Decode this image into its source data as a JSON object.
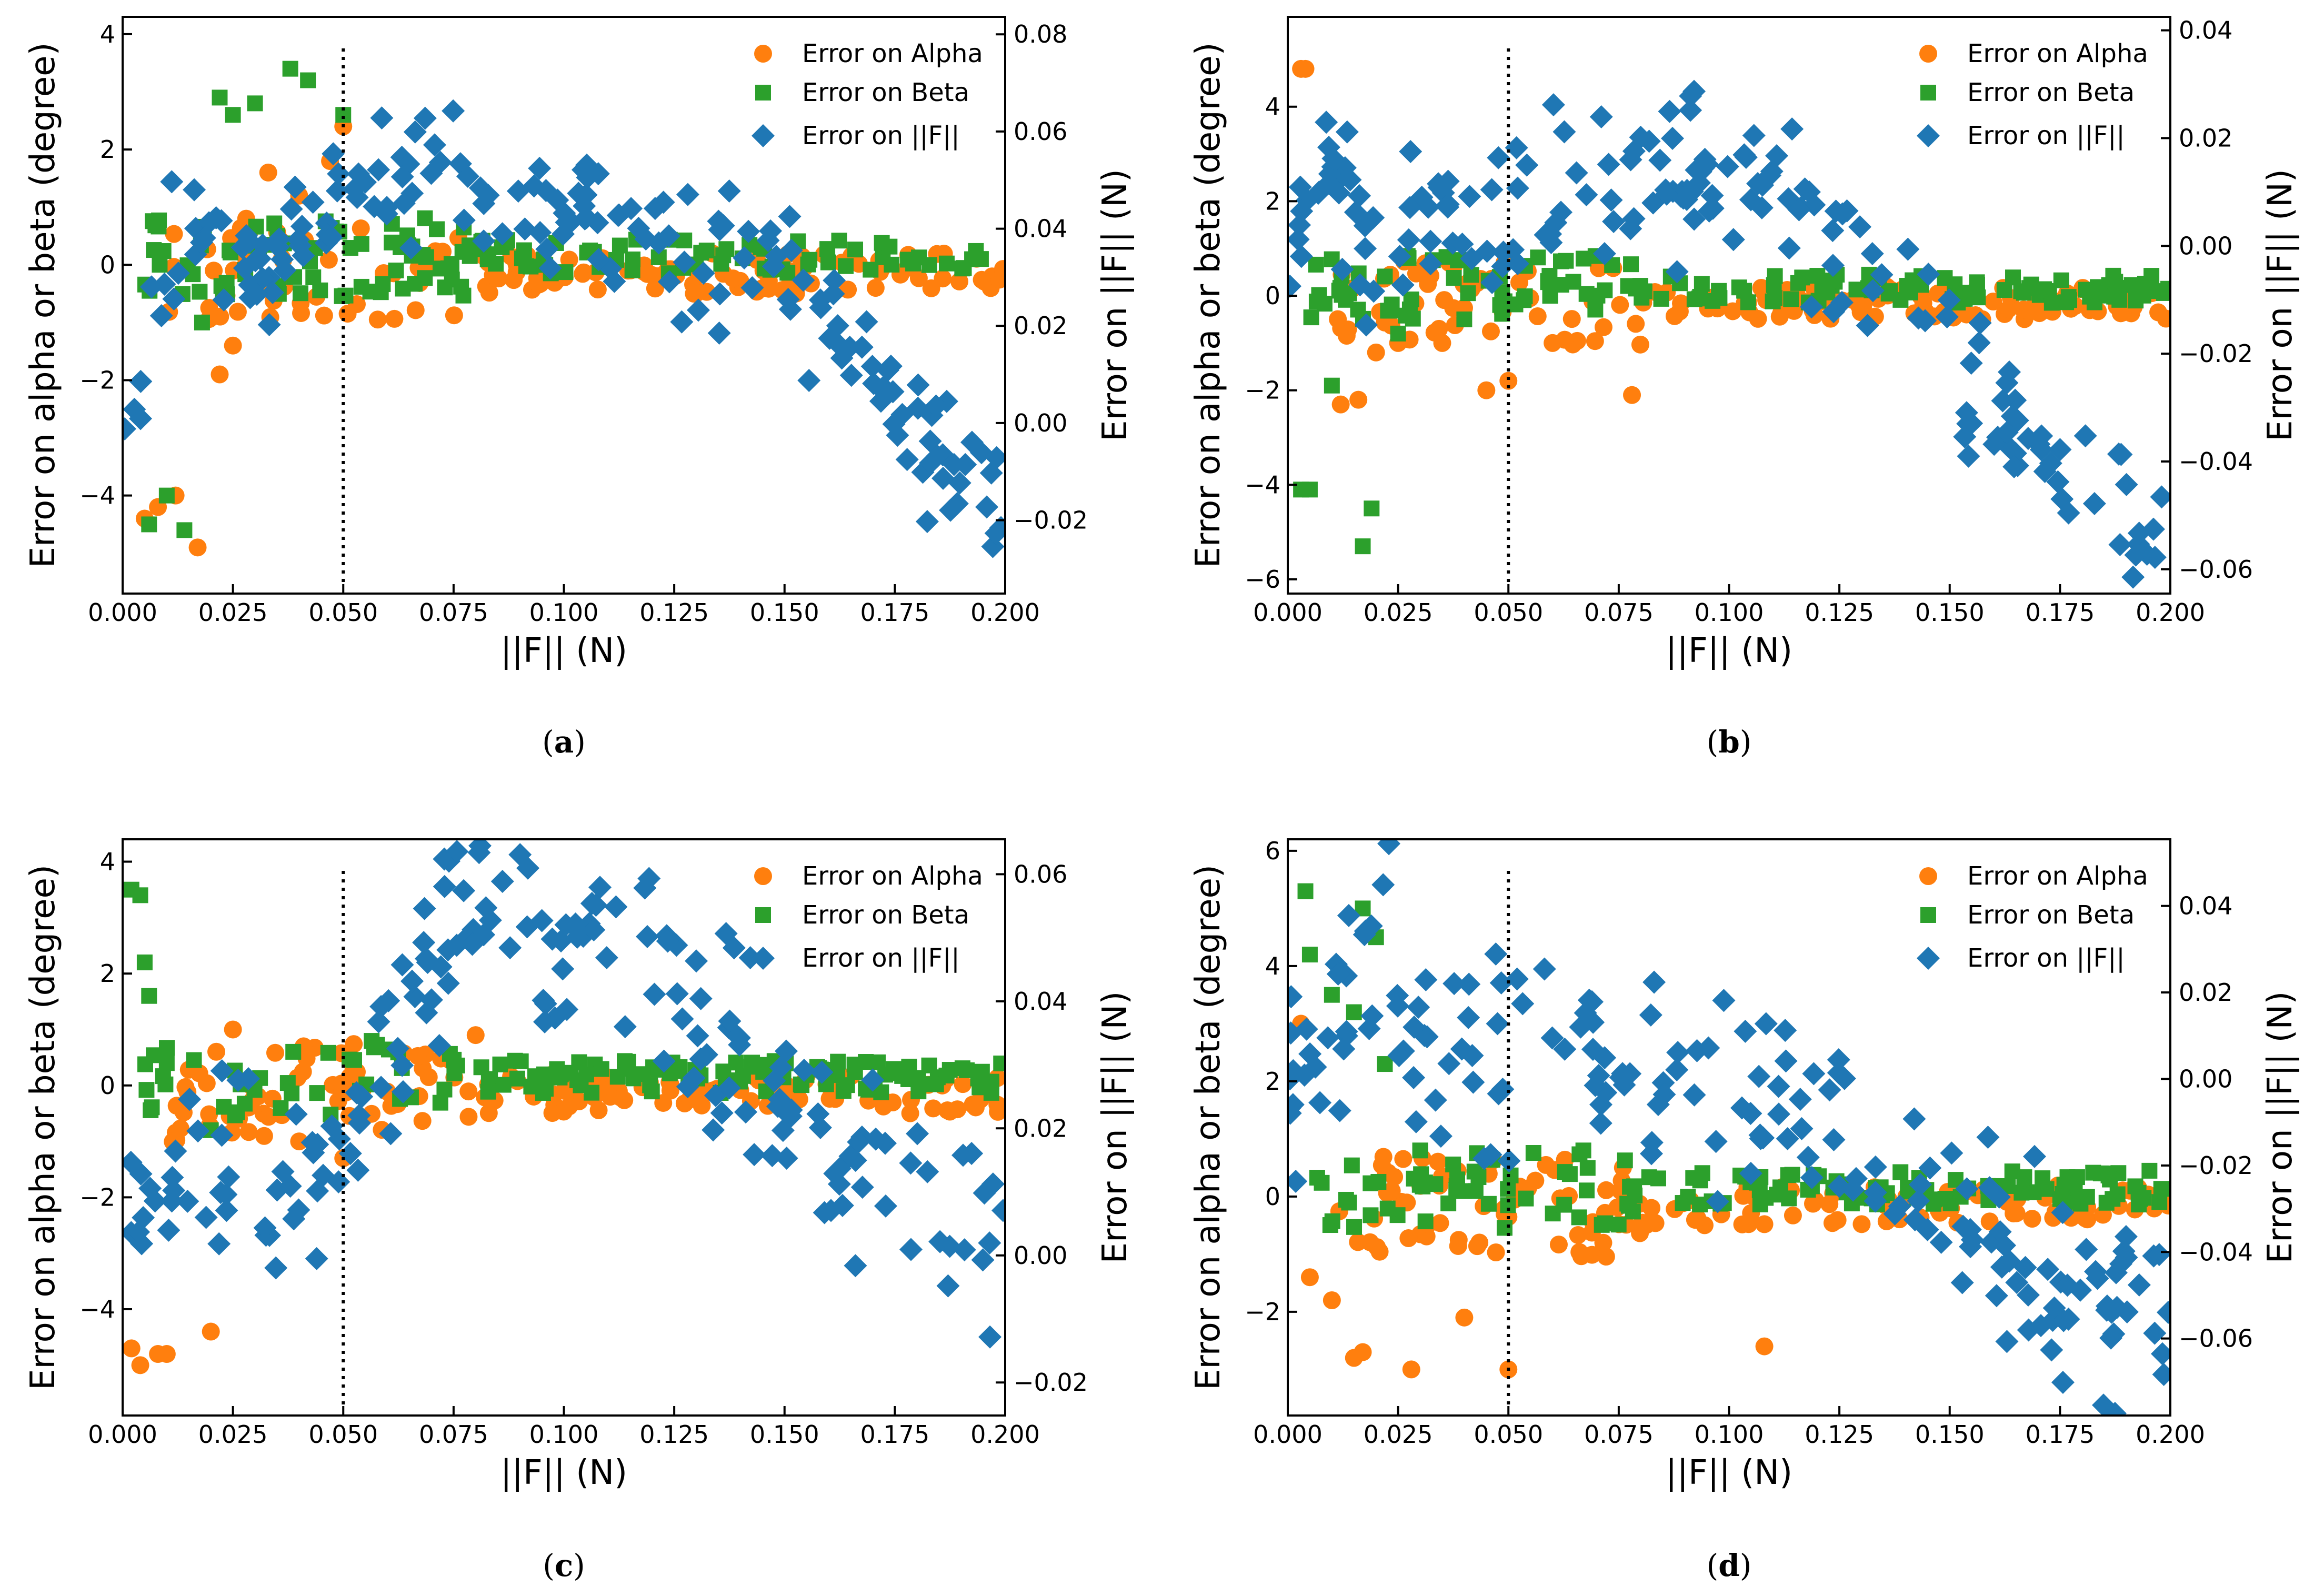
{
  "colors": {
    "alpha": "#ff7f0e",
    "beta": "#2ca02c",
    "force": "#1f77b4"
  },
  "chart_data": [
    {
      "type": "scatter",
      "panel": "(a)",
      "caption_letter": "a",
      "xlabel": "||F|| (N)",
      "ylabel": "Error on alpha or beta (degree)",
      "ylabel_right": "Error on ||F|| (N)",
      "xlim": [
        0,
        0.2
      ],
      "ylim": [
        -5.7,
        4.3
      ],
      "ylim_right": [
        -0.0351,
        0.0836
      ],
      "xticks": [
        "0.000",
        "0.025",
        "0.050",
        "0.075",
        "0.100",
        "0.125",
        "0.150",
        "0.175",
        "0.200"
      ],
      "yticks": [
        -4,
        -2,
        0,
        2,
        4
      ],
      "yticks_right": [
        "-0.02",
        "0.00",
        "0.02",
        "0.04",
        "0.06",
        "0.08"
      ],
      "ytick_values_right": [
        -0.02,
        0,
        0.02,
        0.04,
        0.06,
        0.08
      ],
      "vline_x": 0.05,
      "legend": [
        "Error on Alpha",
        "Error on Beta",
        "Error on ||F||"
      ],
      "seed": 11,
      "series_generation": {
        "alpha_early": [
          [
            0.005,
            -4.4
          ],
          [
            0.008,
            -4.2
          ],
          [
            0.012,
            -4.0
          ],
          [
            0.017,
            -4.9
          ],
          [
            0.022,
            -1.9
          ],
          [
            0.025,
            -1.4
          ],
          [
            0.028,
            0.8
          ],
          [
            0.033,
            1.6
          ],
          [
            0.04,
            1.2
          ],
          [
            0.047,
            1.8
          ],
          [
            0.05,
            2.4
          ]
        ],
        "beta_early": [
          [
            0.006,
            -4.5
          ],
          [
            0.01,
            -4.0
          ],
          [
            0.014,
            -4.6
          ],
          [
            0.018,
            -1.0
          ],
          [
            0.022,
            2.9
          ],
          [
            0.025,
            2.6
          ],
          [
            0.03,
            2.8
          ],
          [
            0.038,
            3.4
          ],
          [
            0.042,
            3.2
          ],
          [
            0.05,
            2.6
          ]
        ],
        "force_trend": [
          [
            0,
            -0.005
          ],
          [
            0.01,
            0.03
          ],
          [
            0.02,
            0.045
          ],
          [
            0.03,
            0.03
          ],
          [
            0.04,
            0.045
          ],
          [
            0.05,
            0.042
          ],
          [
            0.06,
            0.052
          ],
          [
            0.08,
            0.047
          ],
          [
            0.1,
            0.042
          ],
          [
            0.12,
            0.038
          ],
          [
            0.14,
            0.035
          ],
          [
            0.15,
            0.03
          ],
          [
            0.16,
            0.02
          ],
          [
            0.18,
            0.0
          ],
          [
            0.2,
            -0.02
          ]
        ],
        "force_noise": 0.007
      }
    },
    {
      "type": "scatter",
      "panel": "(b)",
      "caption_letter": "b",
      "xlabel": "||F|| (N)",
      "ylabel": "Error on alpha or beta (degree)",
      "ylabel_right": "Error on ||F|| (N)",
      "xlim": [
        0,
        0.2
      ],
      "ylim": [
        -6.3,
        5.9
      ],
      "ylim_right": [
        -0.0645,
        0.0425
      ],
      "xticks": [
        "0.000",
        "0.025",
        "0.050",
        "0.075",
        "0.100",
        "0.125",
        "0.150",
        "0.175",
        "0.200"
      ],
      "yticks": [
        -6,
        -4,
        -2,
        0,
        2,
        4
      ],
      "yticks_right": [
        "-0.06",
        "-0.04",
        "-0.02",
        "0.00",
        "0.02",
        "0.04"
      ],
      "ytick_values_right": [
        -0.06,
        -0.04,
        -0.02,
        0,
        0.02,
        0.04
      ],
      "vline_x": 0.05,
      "legend": [
        "Error on Alpha",
        "Error on Beta",
        "Error on ||F||"
      ],
      "seed": 23,
      "series_generation": {
        "alpha_early": [
          [
            0.003,
            4.8
          ],
          [
            0.004,
            4.8
          ],
          [
            0.012,
            -2.3
          ],
          [
            0.016,
            -2.2
          ],
          [
            0.02,
            -1.2
          ],
          [
            0.025,
            -1.0
          ],
          [
            0.035,
            -1.0
          ],
          [
            0.045,
            -2.0
          ],
          [
            0.05,
            -1.8
          ],
          [
            0.06,
            -1.0
          ],
          [
            0.078,
            -2.1
          ]
        ],
        "beta_early": [
          [
            0.003,
            -4.1
          ],
          [
            0.005,
            -4.1
          ],
          [
            0.01,
            -1.9
          ],
          [
            0.017,
            -5.3
          ],
          [
            0.019,
            -4.5
          ],
          [
            0.025,
            -0.8
          ],
          [
            0.04,
            -0.5
          ]
        ],
        "force_trend": [
          [
            0,
            0.005
          ],
          [
            0.01,
            0.01
          ],
          [
            0.02,
            -0.005
          ],
          [
            0.03,
            0.005
          ],
          [
            0.05,
            0.005
          ],
          [
            0.07,
            0.008
          ],
          [
            0.09,
            0.012
          ],
          [
            0.11,
            0.012
          ],
          [
            0.12,
            0.005
          ],
          [
            0.13,
            -0.005
          ],
          [
            0.14,
            -0.01
          ],
          [
            0.16,
            -0.03
          ],
          [
            0.18,
            -0.045
          ],
          [
            0.2,
            -0.06
          ]
        ],
        "force_noise": 0.007
      }
    },
    {
      "type": "scatter",
      "panel": "(c)",
      "caption_letter": "c",
      "xlabel": "||F|| (N)",
      "ylabel": "Error on alpha or beta (degree)",
      "ylabel_right": "Error on ||F||",
      "ylabel_right_unit": " (N)",
      "xlim": [
        0,
        0.2
      ],
      "ylim": [
        -5.9,
        4.4
      ],
      "ylim_right": [
        -0.0252,
        0.0655
      ],
      "xticks": [
        "0.000",
        "0.025",
        "0.050",
        "0.075",
        "0.100",
        "0.125",
        "0.150",
        "0.175",
        "0.200"
      ],
      "yticks": [
        -4,
        -2,
        0,
        2,
        4
      ],
      "yticks_right": [
        "-0.02",
        "0.00",
        "0.02",
        "0.04",
        "0.06"
      ],
      "ytick_values_right": [
        -0.02,
        0,
        0.02,
        0.04,
        0.06
      ],
      "vline_x": 0.05,
      "legend": [
        "Error on Alpha",
        "Error on Beta",
        "Error on ||F||"
      ],
      "seed": 37,
      "series_generation": {
        "alpha_early": [
          [
            0.002,
            -4.7
          ],
          [
            0.004,
            -5.0
          ],
          [
            0.008,
            -4.8
          ],
          [
            0.01,
            -4.8
          ],
          [
            0.02,
            -4.4
          ],
          [
            0.025,
            1.0
          ],
          [
            0.04,
            -1.0
          ],
          [
            0.05,
            -1.3
          ],
          [
            0.08,
            0.9
          ]
        ],
        "beta_early": [
          [
            0.002,
            3.5
          ],
          [
            0.004,
            3.4
          ],
          [
            0.005,
            2.2
          ],
          [
            0.006,
            1.6
          ],
          [
            0.01,
            0.4
          ],
          [
            0.02,
            -0.8
          ]
        ],
        "force_trend": [
          [
            0,
            0.01
          ],
          [
            0.02,
            0.012
          ],
          [
            0.03,
            0.015
          ],
          [
            0.04,
            0.01
          ],
          [
            0.05,
            0.022
          ],
          [
            0.06,
            0.03
          ],
          [
            0.07,
            0.045
          ],
          [
            0.085,
            0.055
          ],
          [
            0.1,
            0.048
          ],
          [
            0.12,
            0.042
          ],
          [
            0.14,
            0.03
          ],
          [
            0.16,
            0.02
          ],
          [
            0.18,
            0.008
          ],
          [
            0.2,
            0.002
          ]
        ],
        "force_noise": 0.008
      }
    },
    {
      "type": "scatter",
      "panel": "(d)",
      "caption_letter": "d",
      "xlabel": "||F|| (N)",
      "ylabel": "Error on alpha or beta (degree)",
      "ylabel_right": "Error on ||F|| (N)",
      "xlim": [
        0,
        0.2
      ],
      "ylim": [
        -3.8,
        6.2
      ],
      "ylim_right": [
        -0.0778,
        0.0554
      ],
      "xticks": [
        "0.000",
        "0.025",
        "0.050",
        "0.075",
        "0.100",
        "0.125",
        "0.150",
        "0.175",
        "0.200"
      ],
      "yticks": [
        -2,
        0,
        2,
        4,
        6
      ],
      "yticks_right": [
        "-0.06",
        "-0.04",
        "-0.02",
        "0.00",
        "0.02",
        "0.04"
      ],
      "ytick_values_right": [
        -0.06,
        -0.04,
        -0.02,
        0,
        0.02,
        0.04
      ],
      "vline_x": 0.05,
      "legend": [
        "Error on Alpha",
        "Error on Beta",
        "Error on ||F||"
      ],
      "seed": 53,
      "series_generation": {
        "alpha_early": [
          [
            0.003,
            3.0
          ],
          [
            0.005,
            -1.4
          ],
          [
            0.01,
            -1.8
          ],
          [
            0.015,
            -2.8
          ],
          [
            0.017,
            -2.7
          ],
          [
            0.028,
            -3.0
          ],
          [
            0.04,
            -2.1
          ],
          [
            0.05,
            -3.0
          ],
          [
            0.108,
            -2.6
          ]
        ],
        "beta_early": [
          [
            0.004,
            5.3
          ],
          [
            0.005,
            4.2
          ],
          [
            0.01,
            3.5
          ],
          [
            0.015,
            3.2
          ],
          [
            0.017,
            5.0
          ],
          [
            0.02,
            4.5
          ],
          [
            0.022,
            2.3
          ],
          [
            0.03,
            0.8
          ]
        ],
        "force_trend": [
          [
            0,
            0.0
          ],
          [
            0.01,
            0.015
          ],
          [
            0.02,
            0.03
          ],
          [
            0.03,
            0.01
          ],
          [
            0.05,
            0.005
          ],
          [
            0.07,
            0.0
          ],
          [
            0.09,
            -0.005
          ],
          [
            0.1,
            0.0
          ],
          [
            0.12,
            -0.01
          ],
          [
            0.14,
            -0.03
          ],
          [
            0.16,
            -0.04
          ],
          [
            0.18,
            -0.05
          ],
          [
            0.2,
            -0.06
          ]
        ],
        "force_noise": 0.012
      }
    }
  ]
}
